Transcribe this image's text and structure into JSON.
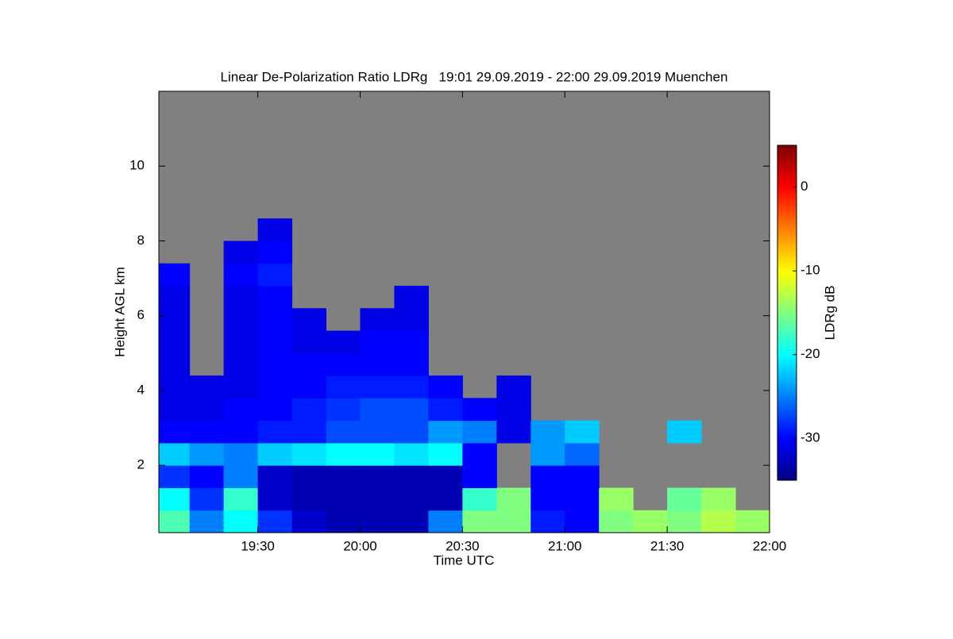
{
  "chart_data": {
    "type": "heatmap",
    "title": "Linear De-Polarization Ratio LDRg   19:01 29.09.2019 - 22:00 29.09.2019 Muenchen",
    "x_label": "Time UTC",
    "y_label": "Height AGL km",
    "colorbar_label": "LDRg dB",
    "xlim": [
      1141,
      1320
    ],
    "xticks": [
      {
        "value": 1170,
        "label": "19:30"
      },
      {
        "value": 1200,
        "label": "20:00"
      },
      {
        "value": 1230,
        "label": "20:30"
      },
      {
        "value": 1260,
        "label": "21:00"
      },
      {
        "value": 1290,
        "label": "21:30"
      },
      {
        "value": 1320,
        "label": "22:00"
      }
    ],
    "ylim": [
      0.2,
      12
    ],
    "yticks": [
      2,
      4,
      6,
      8,
      10
    ],
    "clim": [
      -35,
      5
    ],
    "cticks": [
      -30,
      -20,
      -10,
      0
    ],
    "colorscale": "jet",
    "missing_color": "#808080",
    "xbins": [
      1141,
      1150,
      1160,
      1170,
      1180,
      1190,
      1200,
      1210,
      1220,
      1230,
      1240,
      1250,
      1260,
      1270,
      1280,
      1290,
      1300,
      1310,
      1320
    ],
    "ybins": [
      0.2,
      0.8,
      1.4,
      2.0,
      2.6,
      3.2,
      3.8,
      4.4,
      5.0,
      5.6,
      6.2,
      6.8,
      7.4,
      8.0,
      8.6
    ],
    "values": [
      [
        -17,
        -25,
        -20,
        -28,
        -32,
        -33,
        -33,
        -33,
        -25,
        -15,
        -15,
        -29,
        -30,
        -15,
        -14,
        -15,
        -13,
        -14
      ],
      [
        -20,
        -28,
        -18,
        -32,
        -33,
        -33,
        -33,
        -33,
        -33,
        -18,
        -15,
        -30,
        -30,
        -14,
        null,
        -16,
        -14,
        null
      ],
      [
        -28,
        -30,
        -25,
        -32,
        -33,
        -33,
        -33,
        -33,
        -33,
        -30,
        null,
        -30,
        -30,
        null,
        null,
        null,
        null,
        null
      ],
      [
        -22,
        -24,
        -25,
        -22,
        -21,
        -20,
        -20,
        -21,
        -20,
        -30,
        null,
        -24,
        -26,
        null,
        null,
        null,
        null,
        null
      ],
      [
        -30,
        -30,
        -30,
        -29,
        -29,
        -27,
        -27,
        -27,
        -24,
        -25,
        -31,
        -24,
        -22,
        null,
        null,
        -22,
        null,
        null
      ],
      [
        -31,
        -31,
        -30,
        -30,
        -29,
        -28,
        -27,
        -27,
        -29,
        -30,
        -31,
        null,
        null,
        null,
        null,
        null,
        null,
        null
      ],
      [
        -31,
        -31,
        -31,
        -30,
        -30,
        -29,
        -29,
        -29,
        -30,
        null,
        -31,
        null,
        null,
        null,
        null,
        null,
        null,
        null
      ],
      [
        -31,
        null,
        -31,
        -30,
        -30,
        -30,
        -30,
        -30,
        null,
        null,
        null,
        null,
        null,
        null,
        null,
        null,
        null,
        null
      ],
      [
        -31,
        null,
        -31,
        -30,
        -31,
        -31,
        -30,
        -30,
        null,
        null,
        null,
        null,
        null,
        null,
        null,
        null,
        null,
        null
      ],
      [
        -31,
        null,
        -31,
        -30,
        -31,
        null,
        -31,
        -31,
        null,
        null,
        null,
        null,
        null,
        null,
        null,
        null,
        null,
        null
      ],
      [
        -31,
        null,
        -31,
        -30,
        null,
        null,
        null,
        -31,
        null,
        null,
        null,
        null,
        null,
        null,
        null,
        null,
        null,
        null
      ],
      [
        -30,
        null,
        -30,
        -29,
        null,
        null,
        null,
        null,
        null,
        null,
        null,
        null,
        null,
        null,
        null,
        null,
        null,
        null
      ],
      [
        null,
        null,
        -31,
        -30,
        null,
        null,
        null,
        null,
        null,
        null,
        null,
        null,
        null,
        null,
        null,
        null,
        null,
        null
      ],
      [
        null,
        null,
        null,
        -31,
        null,
        null,
        null,
        null,
        null,
        null,
        null,
        null,
        null,
        null,
        null,
        null,
        null,
        null
      ]
    ]
  }
}
